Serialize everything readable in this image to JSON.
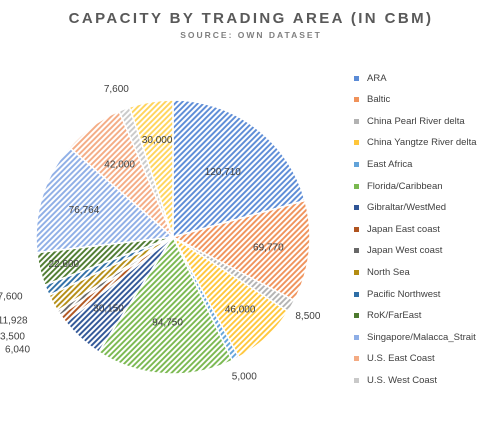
{
  "chart_data": {
    "type": "pie",
    "title": "CAPACITY BY TRADING AREA (IN CBM)",
    "subtitle": "SOURCE: OWN DATASET",
    "legend_position": "right",
    "series": [
      {
        "name": "ARA",
        "value": 120710,
        "label": "120,710",
        "color": "#5b8bd6"
      },
      {
        "name": "Baltic",
        "value": 69770,
        "label": "69,770",
        "color": "#f0925a"
      },
      {
        "name": "China Pearl River delta",
        "value": 8500,
        "label": "8,500",
        "color": "#b2b2b2"
      },
      {
        "name": "China Yangtze River delta",
        "value": 46000,
        "label": "46,000",
        "color": "#ffc63a"
      },
      {
        "name": "East Africa",
        "value": 5000,
        "label": "5,000",
        "color": "#62a3d9"
      },
      {
        "name": "Florida/Caribbean",
        "value": 94750,
        "label": "94,750",
        "color": "#79b84f"
      },
      {
        "name": "Gibraltar/WestMed",
        "value": 30150,
        "label": "30,150",
        "color": "#2f5596"
      },
      {
        "name": "Japan East coast",
        "value": 6040,
        "label": "6,040",
        "color": "#b0541f"
      },
      {
        "name": "Japan West coast",
        "value": 3500,
        "label": "3,500",
        "color": "#686868"
      },
      {
        "name": "North Sea",
        "value": 11928,
        "label": "11,928",
        "color": "#b38c12"
      },
      {
        "name": "Pacific Northwest",
        "value": 7600,
        "label": "7,600",
        "color": "#2e6ea6"
      },
      {
        "name": "RoK/FarEast",
        "value": 22600,
        "label": "22,600",
        "color": "#4d7a2e"
      },
      {
        "name": "Singapore/Malacca_Strait",
        "value": 76764,
        "label": "76,764",
        "color": "#8eaee6"
      },
      {
        "name": "U.S. East Coast",
        "value": 42000,
        "label": "42,000",
        "color": "#f4ab83"
      },
      {
        "name": "U.S. West Coast",
        "value": 7600,
        "label": "7,600",
        "color": "#c9c9c9"
      },
      {
        "name": "",
        "value": 30000,
        "label": "30,000",
        "color": "#ffd45a"
      }
    ]
  }
}
